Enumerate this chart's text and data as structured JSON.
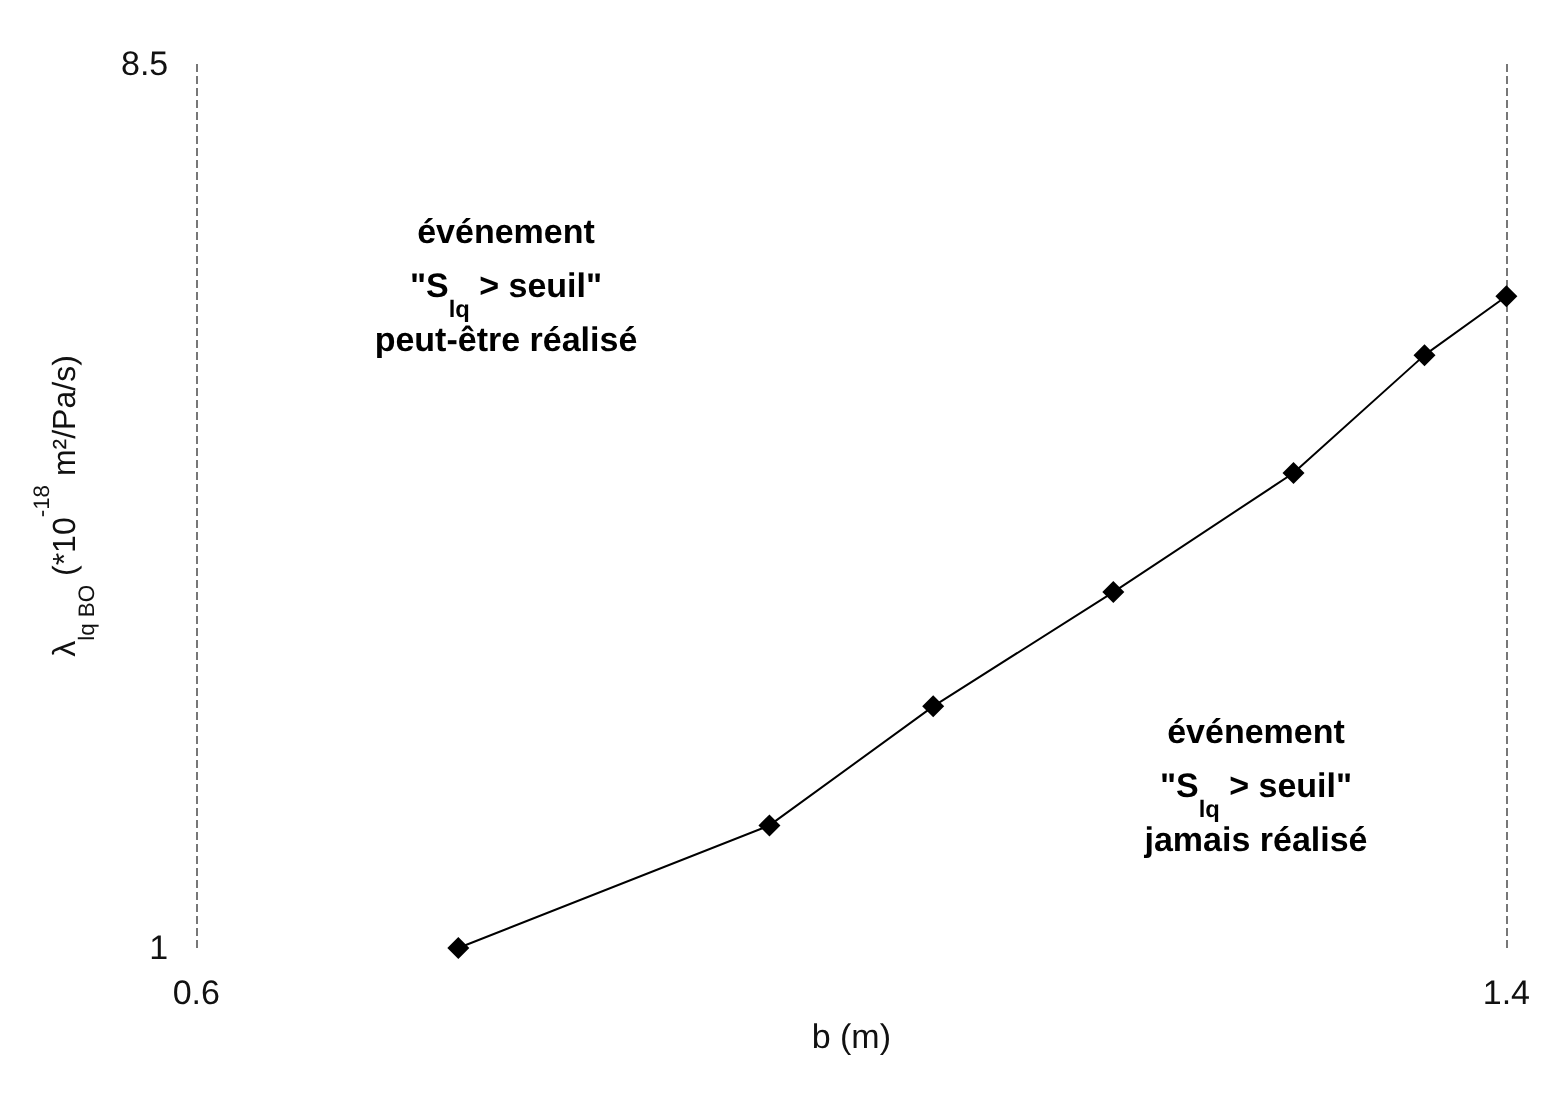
{
  "chart_data": {
    "type": "line",
    "xlabel": "b (m)",
    "ylabel": "λ$_{lq BO}$ (*10$^{-18}$ m²/Pa/s)",
    "x": [
      0.76,
      0.95,
      1.05,
      1.16,
      1.27,
      1.35,
      1.4
    ],
    "series": [
      {
        "color": "#000000",
        "values": [
          1.0,
          2.04,
          3.05,
          4.02,
          5.03,
          6.03,
          6.53
        ]
      }
    ],
    "xlim": [
      0.6,
      1.4
    ],
    "ylim": [
      1,
      8.5
    ],
    "xticks": [
      0.6,
      1.4
    ],
    "yticks": [
      1,
      8.5
    ],
    "grid": "x",
    "marker": "diamond",
    "line_style": "solid",
    "annotations": [
      "événement\n\"S$_{lq}$ > seuil\"\npeut-être réalisé",
      "événement\n\"S$_{lq}$ > seuil\"\njamais réalisé"
    ]
  }
}
